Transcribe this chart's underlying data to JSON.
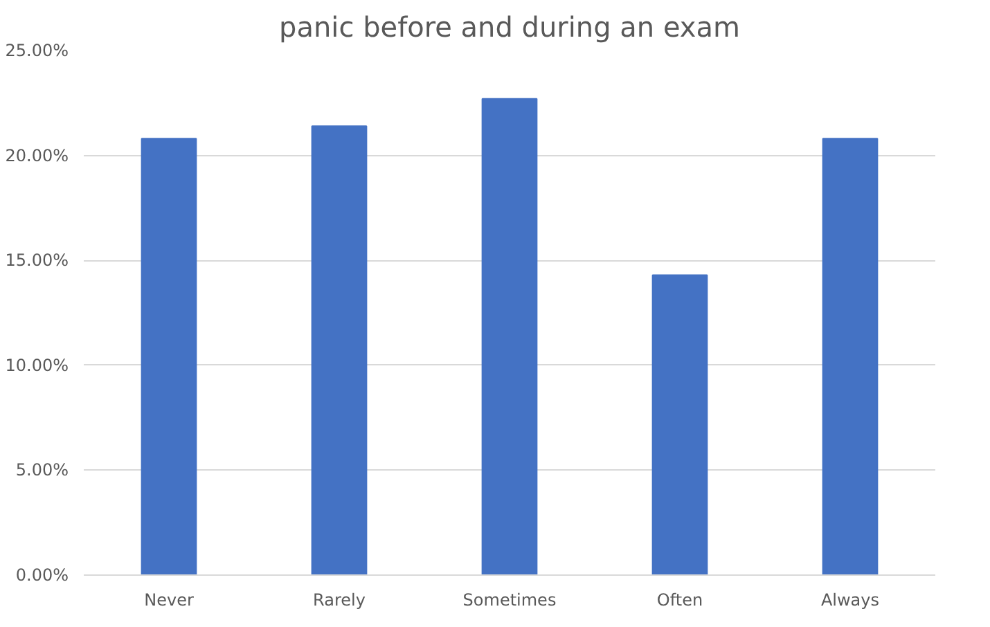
{
  "chart_data": {
    "type": "bar",
    "title": "panic before and during an exam",
    "categories": [
      "Never",
      "Rarely",
      "Sometimes",
      "Often",
      "Always"
    ],
    "values": [
      20.8,
      21.4,
      22.7,
      14.3,
      20.8
    ],
    "color": "#4472c4",
    "ylim": [
      0,
      25
    ],
    "yticks": [
      {
        "value": 0,
        "label": "0.00%"
      },
      {
        "value": 5,
        "label": "5.00%"
      },
      {
        "value": 10,
        "label": "10.00%"
      },
      {
        "value": 15,
        "label": "15.00%"
      },
      {
        "value": 20,
        "label": "20.00%"
      },
      {
        "value": 25,
        "label": "25.00%"
      }
    ],
    "grid": "y"
  }
}
